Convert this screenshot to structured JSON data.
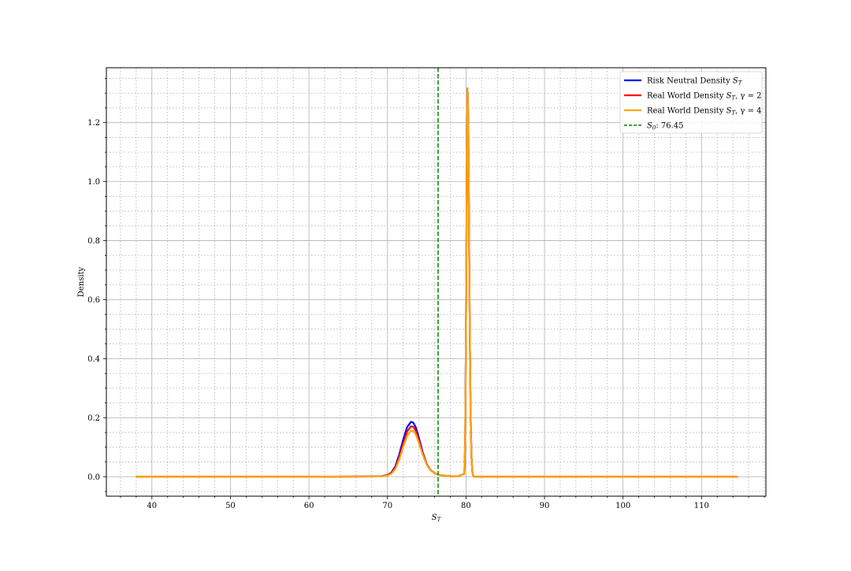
{
  "chart_data": {
    "type": "line",
    "title": "",
    "xlabel": "S_T",
    "ylabel": "Density",
    "xlim": [
      34.2,
      118.2
    ],
    "ylim": [
      -0.066,
      1.386
    ],
    "xticks": [
      40,
      50,
      60,
      70,
      80,
      90,
      100,
      110
    ],
    "xtick_labels": [
      "40",
      "50",
      "60",
      "70",
      "80",
      "90",
      "100",
      "110"
    ],
    "yticks": [
      0.0,
      0.2,
      0.4,
      0.6,
      0.8,
      1.0,
      1.2
    ],
    "ytick_labels": [
      "0.0",
      "0.2",
      "0.4",
      "0.6",
      "0.8",
      "1.0",
      "1.2"
    ],
    "grid": {
      "major": true,
      "minor": true
    },
    "legend_position": "top-right",
    "series": [
      {
        "name": "Risk Neutral Density S_T",
        "legend_main": "Risk Neutral Density ",
        "legend_sym": "S",
        "legend_sub": "T",
        "legend_tail": "",
        "color": "#0000ff",
        "x": [
          38,
          60,
          69,
          70,
          70.5,
          71,
          71.5,
          72,
          72.5,
          73,
          73.3,
          73.6,
          74,
          74.5,
          75,
          75.5,
          76,
          76.5,
          77,
          78,
          79,
          79.8,
          79.9,
          80.0,
          80.1,
          80.2,
          80.3,
          80.4,
          80.5,
          80.6,
          80.7,
          80.8,
          80.9,
          81,
          82,
          90,
          114.6
        ],
        "y": [
          0,
          0,
          0.001,
          0.006,
          0.014,
          0.035,
          0.075,
          0.125,
          0.168,
          0.186,
          0.183,
          0.168,
          0.132,
          0.082,
          0.043,
          0.022,
          0.012,
          0.007,
          0.004,
          0.002,
          0.001,
          0.01,
          0.12,
          0.5,
          1.0,
          1.316,
          1.2,
          0.8,
          0.45,
          0.2,
          0.07,
          0.02,
          0.005,
          0,
          0,
          0,
          0
        ]
      },
      {
        "name": "Real World Density S_T, γ=2",
        "legend_main": "Real World Density ",
        "legend_sym": "S",
        "legend_sub": "T",
        "legend_tail": ", γ = 2",
        "color": "#ff0000",
        "x": [
          38,
          60,
          69,
          70,
          70.5,
          71,
          71.5,
          72,
          72.5,
          73,
          73.3,
          73.6,
          74,
          74.5,
          75,
          75.5,
          76,
          76.5,
          77,
          78,
          79,
          79.8,
          79.9,
          80.0,
          80.1,
          80.2,
          80.3,
          80.4,
          80.5,
          80.6,
          80.7,
          80.8,
          80.9,
          81,
          82,
          90,
          114.6
        ],
        "y": [
          0,
          0,
          0.001,
          0.005,
          0.012,
          0.03,
          0.066,
          0.112,
          0.153,
          0.171,
          0.169,
          0.156,
          0.124,
          0.078,
          0.042,
          0.022,
          0.012,
          0.007,
          0.004,
          0.002,
          0.001,
          0.01,
          0.12,
          0.5,
          1.0,
          1.316,
          1.2,
          0.8,
          0.45,
          0.2,
          0.07,
          0.02,
          0.005,
          0,
          0,
          0,
          0
        ]
      },
      {
        "name": "Real World Density S_T, γ=4",
        "legend_main": "Real World Density ",
        "legend_sym": "S",
        "legend_sub": "T",
        "legend_tail": ", γ = 4",
        "color": "#ffa500",
        "x": [
          38,
          60,
          69,
          70,
          70.5,
          71,
          71.5,
          72,
          72.5,
          73,
          73.3,
          73.6,
          74,
          74.5,
          75,
          75.5,
          76,
          76.5,
          77,
          78,
          79,
          79.8,
          79.9,
          80.0,
          80.1,
          80.2,
          80.3,
          80.4,
          80.5,
          80.6,
          80.7,
          80.8,
          80.9,
          81,
          82,
          90,
          114.6
        ],
        "y": [
          0,
          0,
          0.001,
          0.004,
          0.01,
          0.026,
          0.058,
          0.1,
          0.138,
          0.156,
          0.155,
          0.144,
          0.115,
          0.074,
          0.04,
          0.021,
          0.012,
          0.007,
          0.004,
          0.002,
          0.001,
          0.01,
          0.12,
          0.5,
          1.0,
          1.316,
          1.2,
          0.8,
          0.45,
          0.2,
          0.07,
          0.02,
          0.005,
          0,
          0,
          0,
          0
        ]
      }
    ],
    "reference_line": {
      "name": "S_0: 76.45",
      "legend_sym": "S",
      "legend_sub": "0",
      "legend_tail": ": 76.45",
      "x": 76.45,
      "color": "#008000",
      "style": "dashed"
    }
  }
}
